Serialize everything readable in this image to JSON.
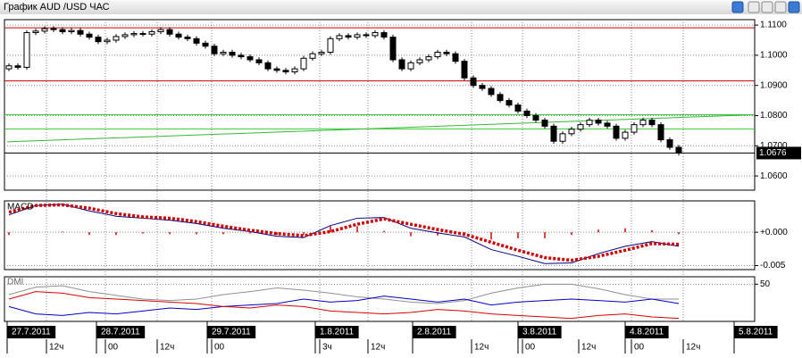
{
  "chart_data": [
    {
      "type": "candlestick",
      "title": "График AUD /USD  ЧАС",
      "open": [
        1.0955,
        1.0965,
        1.096,
        1.1075,
        1.108,
        1.1088,
        1.1085,
        1.1078,
        1.1082,
        1.107,
        1.106,
        1.1045,
        1.105,
        1.1062,
        1.1068,
        1.1072,
        1.107,
        1.1078,
        1.1085,
        1.107,
        1.106,
        1.1055,
        1.104,
        1.103,
        1.1005,
        1.101,
        1.1,
        1.0995,
        1.0985,
        1.0975,
        1.0955,
        1.095,
        1.0945,
        1.0955,
        1.099,
        1.1005,
        1.101,
        1.1055,
        1.1065,
        1.106,
        1.1068,
        1.1065,
        1.1075,
        1.106,
        1.0985,
        1.0955,
        1.0975,
        1.0985,
        1.0995,
        1.101,
        1.1005,
        1.098,
        1.0925,
        1.09,
        1.089,
        1.087,
        1.085,
        1.0835,
        1.0815,
        1.08,
        1.0785,
        1.0765,
        1.0715,
        1.074,
        1.0755,
        1.077,
        1.0785,
        1.0775,
        1.0765,
        1.0725,
        1.0745,
        1.077,
        1.0785,
        1.077,
        1.072,
        1.0695
      ],
      "high": [
        1.0973,
        1.0973,
        1.1083,
        1.1088,
        1.1096,
        1.1096,
        1.1093,
        1.109,
        1.109,
        1.1078,
        1.1068,
        1.1058,
        1.107,
        1.1076,
        1.108,
        1.108,
        1.1086,
        1.1093,
        1.1093,
        1.1078,
        1.1068,
        1.1063,
        1.1048,
        1.1038,
        1.1018,
        1.1018,
        1.1008,
        1.1003,
        1.0993,
        1.0983,
        1.0963,
        1.0958,
        1.0963,
        1.0998,
        1.1013,
        1.1018,
        1.1063,
        1.1073,
        1.1073,
        1.1076,
        1.1076,
        1.1083,
        1.1083,
        1.1068,
        1.0993,
        1.0983,
        1.0993,
        1.1003,
        1.1018,
        1.1018,
        1.1013,
        1.0988,
        1.0933,
        1.0908,
        1.0898,
        1.0878,
        1.0858,
        1.0843,
        1.0823,
        1.0808,
        1.0793,
        1.0773,
        1.0748,
        1.0763,
        1.0778,
        1.0793,
        1.0793,
        1.0783,
        1.0773,
        1.0753,
        1.0778,
        1.0793,
        1.0793,
        1.0778,
        1.0728,
        1.0703
      ],
      "low": [
        1.0947,
        1.0952,
        1.0952,
        1.1067,
        1.1072,
        1.1077,
        1.107,
        1.107,
        1.1062,
        1.1052,
        1.1037,
        1.1037,
        1.1042,
        1.1054,
        1.106,
        1.1062,
        1.1062,
        1.107,
        1.1062,
        1.1052,
        1.1047,
        1.1032,
        1.1022,
        1.0997,
        1.0997,
        1.0992,
        1.0987,
        1.0977,
        1.0967,
        1.0947,
        1.0942,
        1.0937,
        1.0937,
        1.0947,
        1.0982,
        1.0997,
        1.1002,
        1.1047,
        1.1052,
        1.1052,
        1.1057,
        1.1057,
        1.1052,
        1.0977,
        1.0947,
        1.0947,
        1.0967,
        1.0977,
        1.0987,
        1.0997,
        1.0972,
        1.0917,
        1.0892,
        1.0882,
        1.0862,
        1.0842,
        1.0827,
        1.0807,
        1.0792,
        1.0777,
        1.0757,
        1.0707,
        1.0707,
        1.0732,
        1.0747,
        1.0762,
        1.0767,
        1.0757,
        1.0717,
        1.0717,
        1.0737,
        1.0762,
        1.0762,
        1.0712,
        1.0687,
        1.0668
      ],
      "close": [
        1.0965,
        1.096,
        1.1075,
        1.108,
        1.1088,
        1.1085,
        1.1078,
        1.1082,
        1.107,
        1.106,
        1.1045,
        1.105,
        1.1062,
        1.1068,
        1.1072,
        1.107,
        1.1078,
        1.1085,
        1.107,
        1.106,
        1.1055,
        1.104,
        1.103,
        1.1005,
        1.101,
        1.1,
        1.0995,
        1.0985,
        1.0975,
        1.0955,
        1.095,
        1.0945,
        1.0955,
        1.099,
        1.1005,
        1.101,
        1.1055,
        1.1065,
        1.106,
        1.1068,
        1.1065,
        1.1075,
        1.106,
        1.0985,
        1.0955,
        1.0975,
        1.0985,
        1.0995,
        1.101,
        1.1005,
        1.098,
        1.0925,
        1.09,
        1.089,
        1.087,
        1.085,
        1.0835,
        1.0815,
        1.08,
        1.0785,
        1.0765,
        1.0715,
        1.074,
        1.0755,
        1.077,
        1.0785,
        1.0775,
        1.0765,
        1.0725,
        1.0745,
        1.077,
        1.0785,
        1.077,
        1.072,
        1.0695,
        1.0676
      ],
      "xlim": [
        -0.5,
        83.5
      ],
      "xticks": [
        {
          "value": -0.2,
          "label": "27.7.2011"
        },
        {
          "value": 9.8,
          "label": "28.7.2011"
        },
        {
          "value": 22.2,
          "label": "29.7.2011"
        },
        {
          "value": 34.3,
          "label": "1.8.2011"
        },
        {
          "value": 45.2,
          "label": "2.8.2011"
        },
        {
          "value": 57,
          "label": "3.8.2011"
        },
        {
          "value": 69,
          "label": "4.8.2011"
        },
        {
          "value": 81.2,
          "label": "5.8.2011"
        }
      ],
      "minor_xticks": [
        {
          "value": 4.2,
          "label": "12ч"
        },
        {
          "value": 10.8,
          "label": "00"
        },
        {
          "value": 16.6,
          "label": "12ч"
        },
        {
          "value": 22.7,
          "label": "00"
        },
        {
          "value": 34.8,
          "label": "3ч"
        },
        {
          "value": 40.2,
          "label": "12ч"
        },
        {
          "value": 51.8,
          "label": "12ч"
        },
        {
          "value": 57.5,
          "label": "00"
        },
        {
          "value": 63.8,
          "label": "12ч"
        },
        {
          "value": 69.7,
          "label": "00"
        },
        {
          "value": 75.5,
          "label": "12ч"
        }
      ],
      "ylim": [
        1.0553,
        1.1118
      ],
      "yticks": [
        {
          "value": 1.11,
          "label": "1.1100"
        },
        {
          "value": 1.1,
          "label": "1.1000"
        },
        {
          "value": 1.09,
          "label": "1.0900"
        },
        {
          "value": 1.08,
          "label": "1.0800"
        },
        {
          "value": 1.07,
          "label": "1.0700"
        },
        {
          "value": 1.06,
          "label": "1.0600"
        }
      ],
      "levels": [
        {
          "value": 1.1091,
          "color": "#cc0000"
        },
        {
          "value": 1.0915,
          "color": "#cc0000"
        },
        {
          "value": 1.0803,
          "color": "#33cc33"
        },
        {
          "value": 1.0756,
          "color": "#33cc33"
        },
        {
          "value": 1.0676,
          "color": "#000000"
        }
      ],
      "trendline": {
        "x": [
          -0.2,
          83.5
        ],
        "values": [
          1.0713,
          1.0803
        ],
        "color": "#33bb33"
      },
      "last_price": {
        "value": 1.0676,
        "label": "1.0676"
      },
      "grid": true
    },
    {
      "type": "macd",
      "title": "MACD",
      "x": [
        0,
        3,
        6,
        9,
        12,
        15,
        18,
        21,
        24,
        27,
        30,
        33,
        36,
        39,
        42,
        45,
        48,
        51,
        54,
        57,
        60,
        63,
        66,
        69,
        72,
        75
      ],
      "xlim": [
        -0.5,
        83.5
      ],
      "series": [
        {
          "color": "#000080",
          "style": "solid",
          "values": [
            0.0026,
            0.004,
            0.0042,
            0.0032,
            0.0024,
            0.0021,
            0.0018,
            0.0013,
            0.0006,
            0.0001,
            -0.0006,
            -0.0008,
            0.001,
            0.0021,
            0.0022,
            0.0006,
            -0.0001,
            -0.0007,
            -0.0026,
            -0.0036,
            -0.0047,
            -0.0046,
            -0.0032,
            -0.0021,
            -0.0014,
            -0.0021
          ]
        },
        {
          "color": "#cc0000",
          "style": "dotted",
          "values": [
            0.003,
            0.004,
            0.0041,
            0.0036,
            0.0028,
            0.0023,
            0.0021,
            0.0016,
            0.0009,
            0.0003,
            -0.0002,
            -0.0005,
            0.0001,
            0.0012,
            0.002,
            0.0012,
            0.0004,
            -0.0003,
            -0.0015,
            -0.0027,
            -0.0038,
            -0.0042,
            -0.0036,
            -0.0027,
            -0.0017,
            -0.0018
          ]
        }
      ],
      "histogram": {
        "color": "#cc0000",
        "values": [
          -0.0004,
          0,
          0.0001,
          -0.0004,
          -0.0004,
          -0.0002,
          -0.0003,
          -0.0003,
          -0.0003,
          -0.0002,
          -0.0004,
          -0.0003,
          0.0009,
          0.0009,
          0.0002,
          -0.0006,
          -0.0005,
          -0.0004,
          -0.0011,
          -0.0009,
          -0.0009,
          -0.0004,
          0.0004,
          0.0006,
          0.0003,
          -0.0003
        ]
      },
      "ylim": [
        -0.0056,
        0.0047
      ],
      "yticks": [
        {
          "value": 0,
          "label": "+0.000"
        },
        {
          "value": -0.005,
          "label": "-0.005"
        }
      ]
    },
    {
      "type": "dmi",
      "title": "DMI",
      "x": [
        0,
        3,
        6,
        9,
        12,
        15,
        18,
        21,
        24,
        27,
        30,
        33,
        36,
        39,
        42,
        45,
        48,
        51,
        54,
        57,
        60,
        63,
        66,
        69,
        72,
        75
      ],
      "xlim": [
        -0.5,
        83.5
      ],
      "series": [
        {
          "color": "#909090",
          "style": "solid",
          "values": [
            36,
            46,
            48,
            40,
            35,
            30,
            28,
            30,
            36,
            40,
            45,
            42,
            38,
            33,
            30,
            26,
            24,
            28,
            38,
            45,
            50,
            50,
            44,
            36,
            30,
            30
          ]
        },
        {
          "color": "#0000cc",
          "style": "solid",
          "values": [
            20,
            10,
            8,
            12,
            10,
            14,
            18,
            16,
            20,
            22,
            24,
            30,
            26,
            28,
            34,
            30,
            26,
            30,
            22,
            26,
            28,
            30,
            28,
            26,
            30,
            24
          ]
        },
        {
          "color": "#dd0000",
          "style": "solid",
          "values": [
            30,
            40,
            38,
            32,
            30,
            28,
            26,
            24,
            20,
            18,
            22,
            20,
            14,
            12,
            10,
            12,
            16,
            14,
            10,
            8,
            6,
            4,
            8,
            10,
            6,
            4
          ]
        }
      ],
      "ylim": [
        0,
        60
      ],
      "yticks": [
        50
      ]
    }
  ]
}
